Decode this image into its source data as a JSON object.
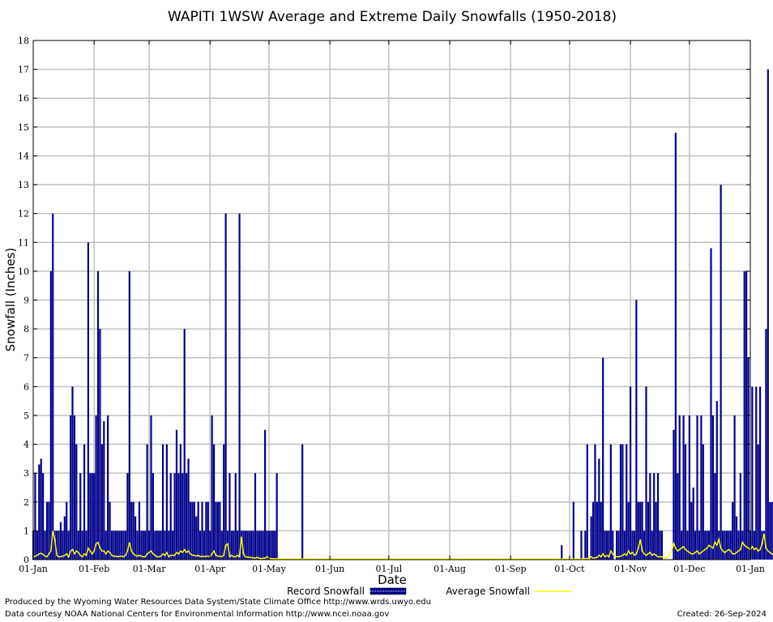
{
  "chart_data": {
    "type": "bar",
    "title": "WAPITI 1WSW Average and Extreme Daily Snowfalls (1950-2018)",
    "xlabel": "Date",
    "ylabel": "Snowfall (Inches)",
    "ylim": [
      0,
      18
    ],
    "yticks": [
      "0",
      "1",
      "2",
      "3",
      "4",
      "5",
      "6",
      "7",
      "8",
      "9",
      "10",
      "11",
      "12",
      "13",
      "14",
      "15",
      "16",
      "17",
      "18"
    ],
    "xticks": [
      {
        "label": "01-Jan",
        "day": 1
      },
      {
        "label": "01-Feb",
        "day": 32
      },
      {
        "label": "01-Mar",
        "day": 60
      },
      {
        "label": "01-Apr",
        "day": 91
      },
      {
        "label": "01-May",
        "day": 121
      },
      {
        "label": "01-Jun",
        "day": 152
      },
      {
        "label": "01-Jul",
        "day": 182
      },
      {
        "label": "01-Aug",
        "day": 213
      },
      {
        "label": "01-Sep",
        "day": 244
      },
      {
        "label": "01-Oct",
        "day": 274
      },
      {
        "label": "01-Nov",
        "day": 305
      },
      {
        "label": "01-Dec",
        "day": 335
      },
      {
        "label": "01-Jan",
        "day": 366
      }
    ],
    "grid": true,
    "legend_position": "bottom",
    "colors": {
      "record": "#00008b",
      "average": "#ffff00",
      "grid": "#c0c0c0"
    },
    "series": [
      {
        "name": "Record Snowfall",
        "kind": "bar",
        "values": [
          1,
          3,
          1,
          3.3,
          3.5,
          3,
          1,
          2,
          2,
          10,
          12,
          1,
          1,
          1,
          1.3,
          1,
          1.5,
          2,
          1,
          5,
          6,
          5,
          4,
          1,
          3,
          1,
          4,
          1,
          11,
          3,
          3,
          3,
          5,
          10,
          8,
          4,
          4.8,
          1,
          5,
          2,
          1,
          1,
          1,
          1,
          1,
          1,
          1,
          1,
          3,
          10,
          2,
          2,
          1.5,
          1,
          2,
          1,
          1,
          1,
          4,
          1,
          5,
          3,
          1,
          1,
          1,
          1,
          4,
          1,
          4,
          1,
          3,
          1,
          3,
          4.5,
          3,
          4,
          3,
          8,
          3,
          3.5,
          2,
          2,
          2,
          1.5,
          2,
          1,
          2,
          1,
          2,
          2,
          1,
          5,
          4,
          2,
          2,
          2,
          1,
          4,
          12,
          1,
          3,
          1,
          1,
          3,
          1,
          12,
          1,
          1,
          1,
          1,
          1,
          1,
          1,
          3,
          1,
          1,
          1,
          1,
          4.5,
          1,
          1,
          1,
          1,
          1,
          3,
          0,
          0,
          0,
          0,
          0,
          0,
          0,
          0,
          0,
          0,
          0,
          0,
          4,
          0,
          0,
          0,
          0,
          0,
          0,
          0,
          0,
          0,
          0,
          0,
          0,
          0,
          0,
          0,
          0,
          0,
          0,
          0,
          0,
          0,
          0,
          0,
          0,
          0,
          0,
          0,
          0,
          0,
          0,
          0,
          0,
          0,
          0,
          0,
          0,
          0,
          0,
          0,
          0,
          0,
          0,
          0,
          0,
          0,
          0,
          0,
          0,
          0,
          0,
          0,
          0,
          0,
          0,
          0,
          0,
          0,
          0,
          0,
          0,
          0,
          0,
          0,
          0,
          0,
          0,
          0,
          0,
          0,
          0,
          0,
          0,
          0,
          0,
          0,
          0,
          0,
          0,
          0,
          0,
          0,
          0,
          0,
          0,
          0,
          0,
          0,
          0,
          0,
          0,
          0,
          0,
          0,
          0,
          0,
          0,
          0,
          0,
          0,
          0,
          0,
          0,
          0,
          0,
          0,
          0,
          0,
          0,
          0,
          0,
          0,
          0,
          0,
          0,
          0,
          0,
          0,
          0,
          0,
          0,
          0,
          0,
          0,
          0,
          0,
          0,
          0,
          0,
          0,
          0,
          0,
          0.5,
          0,
          0,
          0,
          0,
          0,
          2,
          0,
          0,
          0,
          1,
          0,
          1,
          4,
          0,
          1.5,
          2,
          4,
          2,
          3.5,
          2,
          7,
          1,
          1,
          1,
          4,
          1,
          0,
          1,
          1,
          4,
          4,
          1,
          4,
          2,
          6,
          1,
          1,
          9,
          2,
          2,
          2,
          1,
          6,
          2,
          3,
          1,
          3,
          2,
          3,
          1,
          1,
          0,
          0,
          0,
          0,
          0,
          4.5,
          14.8,
          3,
          5,
          1,
          5,
          4,
          1,
          5,
          2,
          2.5,
          1,
          5,
          1,
          5,
          4,
          1,
          1,
          1,
          10.8,
          5,
          3,
          5.5,
          1,
          13,
          1,
          1,
          1,
          1,
          1,
          2,
          5,
          1.5,
          1,
          3,
          1,
          10,
          10,
          7,
          1,
          6,
          1,
          6,
          4,
          6,
          1,
          1,
          8,
          17,
          2,
          2,
          3,
          3,
          1
        ],
        "note_days_start": 1
      },
      {
        "name": "Average Snowfall",
        "kind": "line",
        "values": [
          0.08,
          0.12,
          0.15,
          0.2,
          0.22,
          0.18,
          0.12,
          0.1,
          0.2,
          0.3,
          1.0,
          0.7,
          0.15,
          0.1,
          0.1,
          0.12,
          0.15,
          0.2,
          0.1,
          0.3,
          0.35,
          0.2,
          0.3,
          0.25,
          0.15,
          0.1,
          0.2,
          0.15,
          0.4,
          0.3,
          0.2,
          0.3,
          0.55,
          0.6,
          0.4,
          0.3,
          0.3,
          0.2,
          0.3,
          0.25,
          0.15,
          0.12,
          0.12,
          0.1,
          0.12,
          0.12,
          0.1,
          0.15,
          0.3,
          0.6,
          0.3,
          0.2,
          0.15,
          0.12,
          0.15,
          0.12,
          0.1,
          0.1,
          0.2,
          0.25,
          0.3,
          0.2,
          0.15,
          0.1,
          0.1,
          0.12,
          0.2,
          0.15,
          0.25,
          0.1,
          0.15,
          0.15,
          0.15,
          0.25,
          0.2,
          0.3,
          0.25,
          0.35,
          0.25,
          0.3,
          0.2,
          0.15,
          0.15,
          0.12,
          0.15,
          0.1,
          0.12,
          0.1,
          0.12,
          0.12,
          0.1,
          0.2,
          0.3,
          0.15,
          0.12,
          0.12,
          0.1,
          0.15,
          0.5,
          0.55,
          0.1,
          0.15,
          0.1,
          0.1,
          0.15,
          0.1,
          0.8,
          0.2,
          0.1,
          0.08,
          0.08,
          0.07,
          0.06,
          0.05,
          0.08,
          0.05,
          0.04,
          0.05,
          0.05,
          0.1,
          0.05,
          0.04,
          0.03,
          0.03,
          0.03,
          0.05,
          0.02,
          0.02,
          0.01,
          0.01,
          0.01,
          0.01,
          0.01,
          0.01,
          0.01,
          0.01,
          0.01,
          0.01,
          0.05,
          0,
          0,
          0,
          0,
          0,
          0,
          0,
          0,
          0,
          0,
          0,
          0,
          0,
          0,
          0,
          0,
          0,
          0,
          0,
          0,
          0,
          0,
          0,
          0,
          0,
          0,
          0,
          0,
          0,
          0,
          0,
          0,
          0,
          0,
          0,
          0,
          0,
          0,
          0,
          0,
          0,
          0,
          0,
          0,
          0,
          0,
          0,
          0,
          0,
          0,
          0,
          0,
          0,
          0,
          0,
          0,
          0,
          0,
          0,
          0,
          0,
          0,
          0,
          0,
          0,
          0,
          0,
          0,
          0,
          0,
          0,
          0,
          0,
          0,
          0,
          0,
          0,
          0,
          0,
          0,
          0,
          0,
          0,
          0,
          0,
          0,
          0,
          0,
          0,
          0,
          0,
          0,
          0,
          0,
          0,
          0,
          0,
          0,
          0,
          0,
          0,
          0,
          0,
          0,
          0,
          0,
          0,
          0,
          0,
          0,
          0,
          0,
          0,
          0,
          0,
          0,
          0,
          0,
          0,
          0,
          0,
          0,
          0,
          0,
          0,
          0,
          0,
          0,
          0,
          0,
          0,
          0,
          0.01,
          0.01,
          0.01,
          0.01,
          0.01,
          0.02,
          0.02,
          0.02,
          0.02,
          0.03,
          0.04,
          0.04,
          0.05,
          0.1,
          0.05,
          0.06,
          0.08,
          0.15,
          0.1,
          0.2,
          0.1,
          0.15,
          0.1,
          0.3,
          0.2,
          0.12,
          0.1,
          0.1,
          0.12,
          0.15,
          0.2,
          0.15,
          0.3,
          0.2,
          0.25,
          0.15,
          0.2,
          0.4,
          0.7,
          0.3,
          0.2,
          0.15,
          0.2,
          0.25,
          0.15,
          0.2,
          0.15,
          0.1,
          0.1,
          0.1,
          0.05,
          0.05,
          0.1,
          0.2,
          0.3,
          0.55,
          0.4,
          0.3,
          0.35,
          0.4,
          0.45,
          0.35,
          0.3,
          0.25,
          0.2,
          0.2,
          0.25,
          0.3,
          0.2,
          0.25,
          0.3,
          0.35,
          0.4,
          0.5,
          0.45,
          0.4,
          0.6,
          0.5,
          0.7,
          0.4,
          0.3,
          0.25,
          0.3,
          0.35,
          0.3,
          0.2,
          0.2,
          0.25,
          0.3,
          0.35,
          0.6,
          0.5,
          0.45,
          0.4,
          0.35,
          0.45,
          0.35,
          0.4,
          0.3,
          0.35,
          0.55,
          0.9,
          0.4,
          0.3,
          0.25,
          0.2,
          0.15,
          0.1
        ]
      }
    ]
  },
  "footer": {
    "credit_line1": "Produced by the Wyoming Water Resources Data System/State Climate Office http://www.wrds.uwyo.edu",
    "credit_line2": "Data courtesy NOAA National Centers for Environmental Information http://www.ncei.noaa.gov",
    "created": "Created:  26-Sep-2024"
  }
}
